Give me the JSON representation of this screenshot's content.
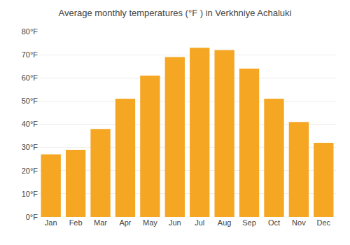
{
  "chart_data": {
    "type": "bar",
    "title": "Average monthly temperatures (°F ) in Verkhniye Achaluki",
    "categories": [
      "Jan",
      "Feb",
      "Mar",
      "Apr",
      "May",
      "Jun",
      "Jul",
      "Aug",
      "Sep",
      "Oct",
      "Nov",
      "Dec"
    ],
    "values": [
      27,
      29,
      38,
      51,
      61,
      69,
      73,
      72,
      64,
      51,
      41,
      32
    ],
    "color": "#F5A623",
    "ylim": [
      0,
      80
    ],
    "yticks": [
      {
        "value": 0,
        "label": "0°F"
      },
      {
        "value": 10,
        "label": "10°F"
      },
      {
        "value": 20,
        "label": "20°F"
      },
      {
        "value": 30,
        "label": "30°F"
      },
      {
        "value": 40,
        "label": "40°F"
      },
      {
        "value": 50,
        "label": "50°F"
      },
      {
        "value": 60,
        "label": "60°F"
      },
      {
        "value": 70,
        "label": "70°F"
      },
      {
        "value": 80,
        "label": "80°F"
      }
    ],
    "grid": true
  }
}
